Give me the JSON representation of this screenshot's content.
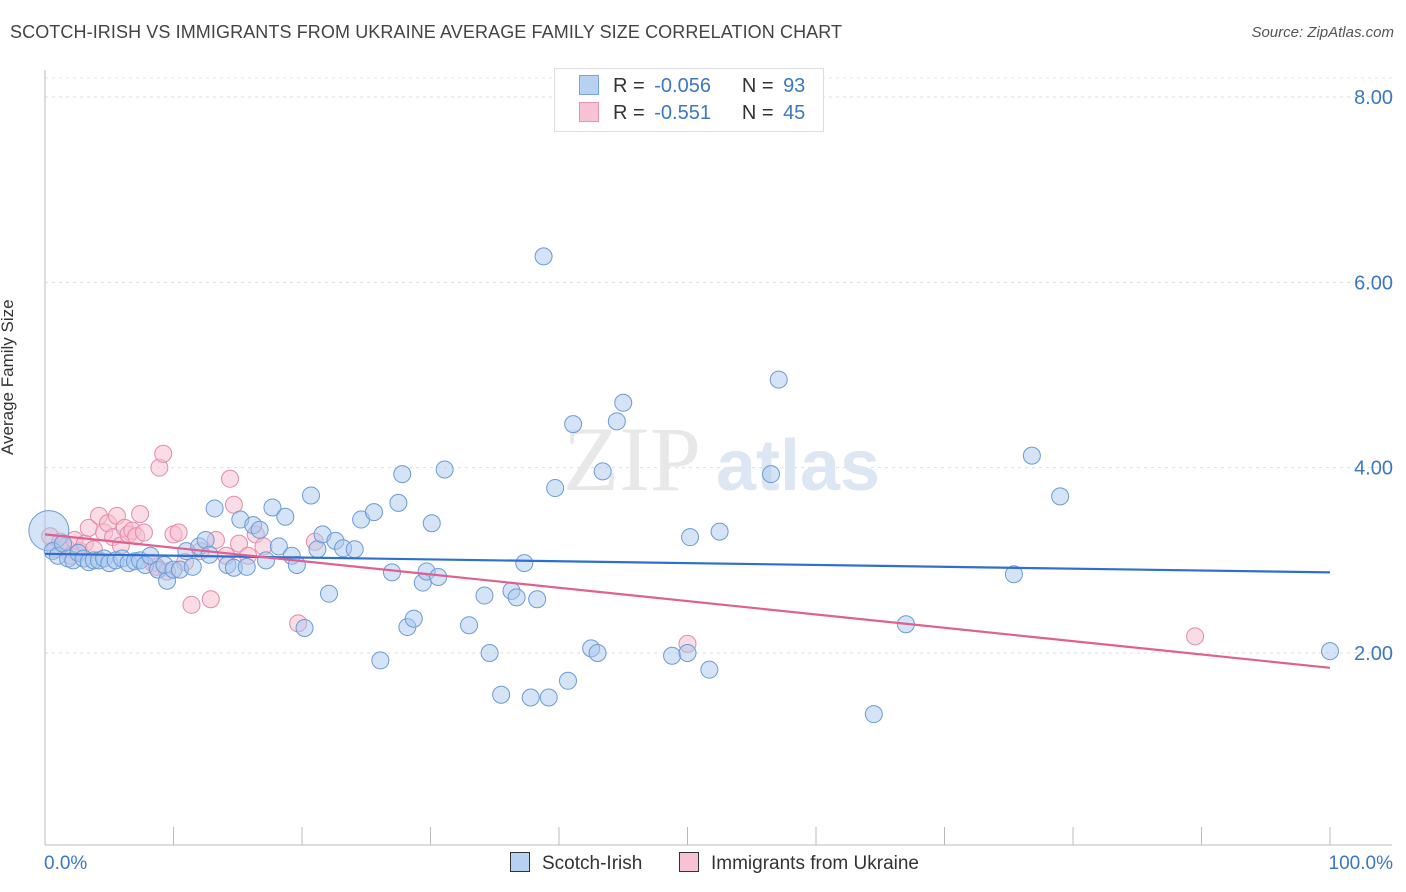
{
  "header": {
    "title": "SCOTCH-IRISH VS IMMIGRANTS FROM UKRAINE AVERAGE FAMILY SIZE CORRELATION CHART",
    "source": "Source: ZipAtlas.com"
  },
  "legend": {
    "r_label": "R =",
    "n_label": "N =",
    "series": [
      {
        "r": "-0.056",
        "n": "93"
      },
      {
        "r": "-0.551",
        "n": "45"
      }
    ]
  },
  "watermark": {
    "zip": "ZIP",
    "atlas": "atlas"
  },
  "colors": {
    "blue_fill": "#a9c8ee",
    "blue_stroke": "#6b9bd6",
    "blue_line": "#2f6fcf",
    "pink_fill": "#f6bfd0",
    "pink_stroke": "#e58aaa",
    "pink_line": "#e0608f",
    "tick_label": "#3b78c4"
  },
  "chart_data": {
    "type": "scatter",
    "title": "SCOTCH-IRISH VS IMMIGRANTS FROM UKRAINE AVERAGE FAMILY SIZE CORRELATION CHART",
    "xlabel": "",
    "ylabel": "Average Family Size",
    "xlim": [
      0,
      100
    ],
    "ylim": [
      0,
      8.2
    ],
    "x_tick_labels": [
      "0.0%",
      "100.0%"
    ],
    "y_ticks": [
      2,
      4,
      6,
      8
    ],
    "y_tick_labels": [
      "2.00",
      "4.00",
      "6.00",
      "8.00"
    ],
    "grid": true,
    "series": [
      {
        "name": "Scotch-Irish",
        "r": -0.056,
        "n": 93,
        "trend": {
          "x": [
            0,
            100
          ],
          "y": [
            3.07,
            2.87
          ]
        },
        "points": [
          [
            0.3,
            3.32
          ],
          [
            0.6,
            3.1
          ],
          [
            1.0,
            3.05
          ],
          [
            1.4,
            3.18
          ],
          [
            1.8,
            3.02
          ],
          [
            2.2,
            3.0
          ],
          [
            2.6,
            3.08
          ],
          [
            3.0,
            3.02
          ],
          [
            3.4,
            2.98
          ],
          [
            3.8,
            3.0
          ],
          [
            4.2,
            3.0
          ],
          [
            4.6,
            3.02
          ],
          [
            5.0,
            2.97
          ],
          [
            5.5,
            3.0
          ],
          [
            6.0,
            3.02
          ],
          [
            6.5,
            2.97
          ],
          [
            7.0,
            2.99
          ],
          [
            7.4,
            3.0
          ],
          [
            7.8,
            2.95
          ],
          [
            8.2,
            3.05
          ],
          [
            8.8,
            2.9
          ],
          [
            9.3,
            2.95
          ],
          [
            9.5,
            2.78
          ],
          [
            10.0,
            2.9
          ],
          [
            10.5,
            2.9
          ],
          [
            11.0,
            3.1
          ],
          [
            11.5,
            2.93
          ],
          [
            12.0,
            3.15
          ],
          [
            12.5,
            3.22
          ],
          [
            12.8,
            3.06
          ],
          [
            13.2,
            3.56
          ],
          [
            14.2,
            2.95
          ],
          [
            14.7,
            2.92
          ],
          [
            15.2,
            3.44
          ],
          [
            15.7,
            2.93
          ],
          [
            16.2,
            3.38
          ],
          [
            16.7,
            3.33
          ],
          [
            17.2,
            3.0
          ],
          [
            17.7,
            3.57
          ],
          [
            18.2,
            3.15
          ],
          [
            18.7,
            3.47
          ],
          [
            19.2,
            3.05
          ],
          [
            19.6,
            2.95
          ],
          [
            20.2,
            2.27
          ],
          [
            20.7,
            3.7
          ],
          [
            21.2,
            3.12
          ],
          [
            21.6,
            3.28
          ],
          [
            22.1,
            2.64
          ],
          [
            22.6,
            3.21
          ],
          [
            23.2,
            3.13
          ],
          [
            24.1,
            3.12
          ],
          [
            24.6,
            3.44
          ],
          [
            25.6,
            3.52
          ],
          [
            26.1,
            1.92
          ],
          [
            27.0,
            2.87
          ],
          [
            27.5,
            3.62
          ],
          [
            27.8,
            3.93
          ],
          [
            28.2,
            2.28
          ],
          [
            28.7,
            2.37
          ],
          [
            29.4,
            2.76
          ],
          [
            29.7,
            2.88
          ],
          [
            30.1,
            3.4
          ],
          [
            30.6,
            2.82
          ],
          [
            31.1,
            3.98
          ],
          [
            33.0,
            2.3
          ],
          [
            34.2,
            2.62
          ],
          [
            34.6,
            2.0
          ],
          [
            35.5,
            1.55
          ],
          [
            36.3,
            2.67
          ],
          [
            36.7,
            2.6
          ],
          [
            37.3,
            2.97
          ],
          [
            37.8,
            1.52
          ],
          [
            38.3,
            2.58
          ],
          [
            38.8,
            6.28
          ],
          [
            39.2,
            1.52
          ],
          [
            39.7,
            3.78
          ],
          [
            40.7,
            1.7
          ],
          [
            41.1,
            4.47
          ],
          [
            42.5,
            2.05
          ],
          [
            43.0,
            2.0
          ],
          [
            43.4,
            3.96
          ],
          [
            44.5,
            4.5
          ],
          [
            45.0,
            4.7
          ],
          [
            48.8,
            1.97
          ],
          [
            50.0,
            2.0
          ],
          [
            50.2,
            3.25
          ],
          [
            51.7,
            1.82
          ],
          [
            52.5,
            3.31
          ],
          [
            56.5,
            3.93
          ],
          [
            57.1,
            4.95
          ],
          [
            64.5,
            1.34
          ],
          [
            67.0,
            2.31
          ],
          [
            75.4,
            2.85
          ],
          [
            76.8,
            4.13
          ],
          [
            79.0,
            3.69
          ],
          [
            100.0,
            2.02
          ]
        ]
      },
      {
        "name": "Immigrants from Ukraine",
        "r": -0.551,
        "n": 45,
        "trend": {
          "x": [
            0,
            100
          ],
          "y": [
            3.28,
            1.84
          ]
        },
        "points": [
          [
            0.4,
            3.26
          ],
          [
            0.8,
            3.12
          ],
          [
            1.2,
            3.2
          ],
          [
            1.6,
            3.15
          ],
          [
            2.0,
            3.05
          ],
          [
            2.3,
            3.22
          ],
          [
            2.7,
            3.1
          ],
          [
            3.1,
            3.18
          ],
          [
            3.4,
            3.35
          ],
          [
            3.8,
            3.12
          ],
          [
            4.2,
            3.48
          ],
          [
            4.6,
            3.3
          ],
          [
            4.9,
            3.4
          ],
          [
            5.3,
            3.25
          ],
          [
            5.6,
            3.48
          ],
          [
            5.9,
            3.16
          ],
          [
            6.2,
            3.35
          ],
          [
            6.5,
            3.28
          ],
          [
            6.8,
            3.32
          ],
          [
            7.1,
            3.26
          ],
          [
            7.4,
            3.5
          ],
          [
            7.7,
            3.3
          ],
          [
            8.4,
            2.97
          ],
          [
            8.7,
            2.93
          ],
          [
            8.9,
            4.0
          ],
          [
            9.2,
            4.15
          ],
          [
            9.5,
            2.88
          ],
          [
            10.0,
            3.28
          ],
          [
            10.4,
            3.3
          ],
          [
            10.9,
            2.98
          ],
          [
            11.4,
            2.52
          ],
          [
            12.1,
            3.1
          ],
          [
            12.9,
            2.58
          ],
          [
            13.3,
            3.22
          ],
          [
            14.1,
            3.05
          ],
          [
            14.4,
            3.88
          ],
          [
            14.7,
            3.6
          ],
          [
            15.1,
            3.18
          ],
          [
            15.8,
            3.05
          ],
          [
            16.4,
            3.28
          ],
          [
            17.0,
            3.15
          ],
          [
            19.7,
            2.32
          ],
          [
            21.0,
            3.2
          ],
          [
            50.0,
            2.1
          ],
          [
            89.5,
            2.18
          ]
        ]
      }
    ]
  },
  "bottom_legend": {
    "items": [
      "Scotch-Irish",
      "Immigrants from Ukraine"
    ]
  }
}
